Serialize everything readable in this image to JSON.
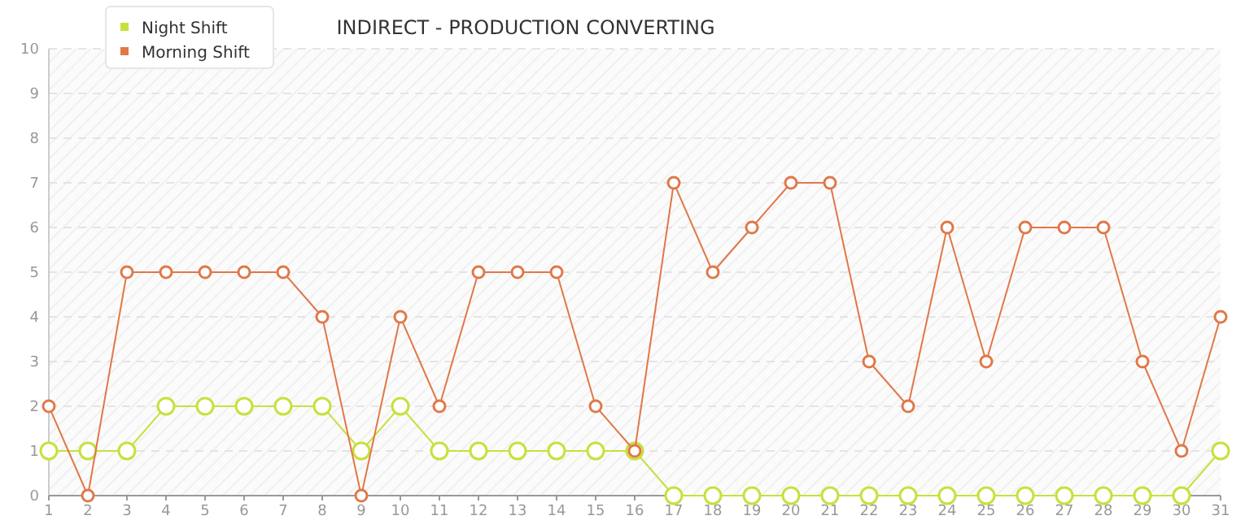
{
  "chart_data": {
    "type": "line",
    "title": "INDIRECT - PRODUCTION CONVERTING",
    "x": [
      1,
      2,
      3,
      4,
      5,
      6,
      7,
      8,
      9,
      10,
      11,
      12,
      13,
      14,
      15,
      16,
      17,
      18,
      19,
      20,
      21,
      22,
      23,
      24,
      25,
      26,
      27,
      28,
      29,
      30,
      31
    ],
    "series": [
      {
        "name": "Night Shift",
        "color": "#c8e03c",
        "values": [
          1,
          1,
          1,
          2,
          2,
          2,
          2,
          2,
          1,
          2,
          1,
          1,
          1,
          1,
          1,
          1,
          0,
          0,
          0,
          0,
          0,
          0,
          0,
          0,
          0,
          0,
          0,
          0,
          0,
          0,
          1
        ]
      },
      {
        "name": "Morning Shift",
        "color": "#e07848",
        "values": [
          2,
          0,
          5,
          5,
          5,
          5,
          5,
          4,
          0,
          4,
          2,
          5,
          5,
          5,
          2,
          1,
          7,
          5,
          6,
          7,
          7,
          3,
          2,
          6,
          3,
          6,
          6,
          6,
          3,
          1,
          4
        ]
      }
    ],
    "xlim": [
      1,
      31
    ],
    "xticks": [
      1,
      2,
      3,
      4,
      5,
      6,
      7,
      8,
      9,
      10,
      11,
      12,
      13,
      14,
      15,
      16,
      17,
      18,
      19,
      20,
      21,
      22,
      23,
      24,
      25,
      26,
      27,
      28,
      29,
      30,
      31
    ],
    "ylim": [
      0,
      10
    ],
    "yticks": [
      0,
      1,
      2,
      3,
      4,
      5,
      6,
      7,
      8,
      9,
      10
    ],
    "grid": "y",
    "legend": "top left",
    "marker": "circle",
    "line_style": "solid"
  }
}
